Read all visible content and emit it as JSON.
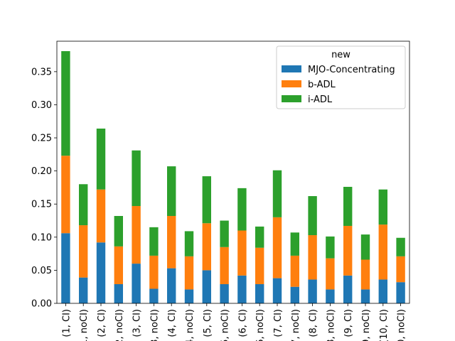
{
  "chart_data": {
    "type": "bar",
    "stacked": true,
    "categories": [
      "(1, CI)",
      "(1, noCI)",
      "(2, CI)",
      "(2, noCI)",
      "(3, CI)",
      "(3, noCI)",
      "(4, CI)",
      "(4, noCI)",
      "(5, CI)",
      "(5, noCI)",
      "(6, CI)",
      "(6, noCI)",
      "(7, CI)",
      "(7, noCI)",
      "(8, CI)",
      "(8, noCI)",
      "(9, CI)",
      "(9, noCI)",
      "(10, CI)",
      "(10, noCI)"
    ],
    "series": [
      {
        "name": "MJO-Concentrating",
        "color": "#1f77b4",
        "values": [
          0.106,
          0.039,
          0.092,
          0.029,
          0.06,
          0.022,
          0.053,
          0.021,
          0.05,
          0.029,
          0.042,
          0.029,
          0.038,
          0.025,
          0.036,
          0.021,
          0.042,
          0.021,
          0.036,
          0.032
        ]
      },
      {
        "name": "b-ADL",
        "color": "#ff7f0e",
        "values": [
          0.117,
          0.079,
          0.08,
          0.057,
          0.087,
          0.05,
          0.079,
          0.05,
          0.071,
          0.056,
          0.068,
          0.055,
          0.092,
          0.047,
          0.067,
          0.047,
          0.075,
          0.045,
          0.083,
          0.039
        ]
      },
      {
        "name": "i-ADL",
        "color": "#2ca02c",
        "values": [
          0.158,
          0.062,
          0.092,
          0.046,
          0.084,
          0.043,
          0.075,
          0.038,
          0.071,
          0.04,
          0.064,
          0.032,
          0.071,
          0.035,
          0.059,
          0.033,
          0.059,
          0.038,
          0.053,
          0.028
        ]
      }
    ],
    "legend": {
      "title": "new",
      "position": "upper-right"
    },
    "y_ticks": [
      "0.00",
      "0.05",
      "0.10",
      "0.15",
      "0.20",
      "0.25",
      "0.30",
      "0.35"
    ],
    "ylim": [
      0,
      0.396
    ],
    "grid": false
  }
}
